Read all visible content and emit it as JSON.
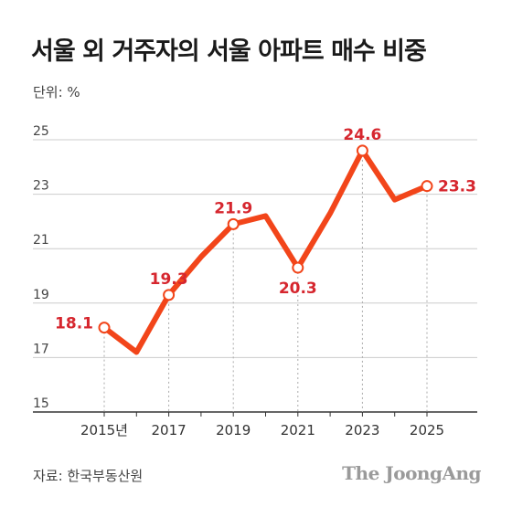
{
  "title": "서울 외 거주자의 서울 아파트 매수 비중",
  "unit_label": "단위: %",
  "source": "자료: 한국부동산원",
  "logo_text": "The JoongAng",
  "colors": {
    "line": "#f2451a",
    "label": "#d6262e",
    "grid": "#cccccc",
    "axis": "#333333",
    "text": "#444444"
  },
  "chart_data": {
    "type": "line",
    "title": "서울 외 거주자의 서울 아파트 매수 비중",
    "xlabel": "",
    "ylabel": "",
    "unit": "%",
    "ylim": [
      15,
      25
    ],
    "yticks": [
      15,
      17,
      19,
      21,
      23,
      25
    ],
    "x": [
      2015,
      2016,
      2017,
      2018,
      2019,
      2020,
      2021,
      2022,
      2023,
      2024,
      2025
    ],
    "x_tick_labels": [
      "2015년",
      "2017",
      "2019",
      "2021",
      "2023",
      "2025"
    ],
    "x_tick_years": [
      2015,
      2017,
      2019,
      2021,
      2023,
      2025
    ],
    "series": [
      {
        "values": [
          18.1,
          17.2,
          19.3,
          20.7,
          21.9,
          22.2,
          20.3,
          22.3,
          24.6,
          22.8,
          23.3
        ]
      }
    ],
    "labeled_points": [
      {
        "year": 2015,
        "label": "18.1"
      },
      {
        "year": 2017,
        "label": "19.3"
      },
      {
        "year": 2019,
        "label": "21.9"
      },
      {
        "year": 2021,
        "label": "20.3"
      },
      {
        "year": 2023,
        "label": "24.6"
      },
      {
        "year": 2025,
        "label": "23.3"
      }
    ],
    "grid": true
  }
}
